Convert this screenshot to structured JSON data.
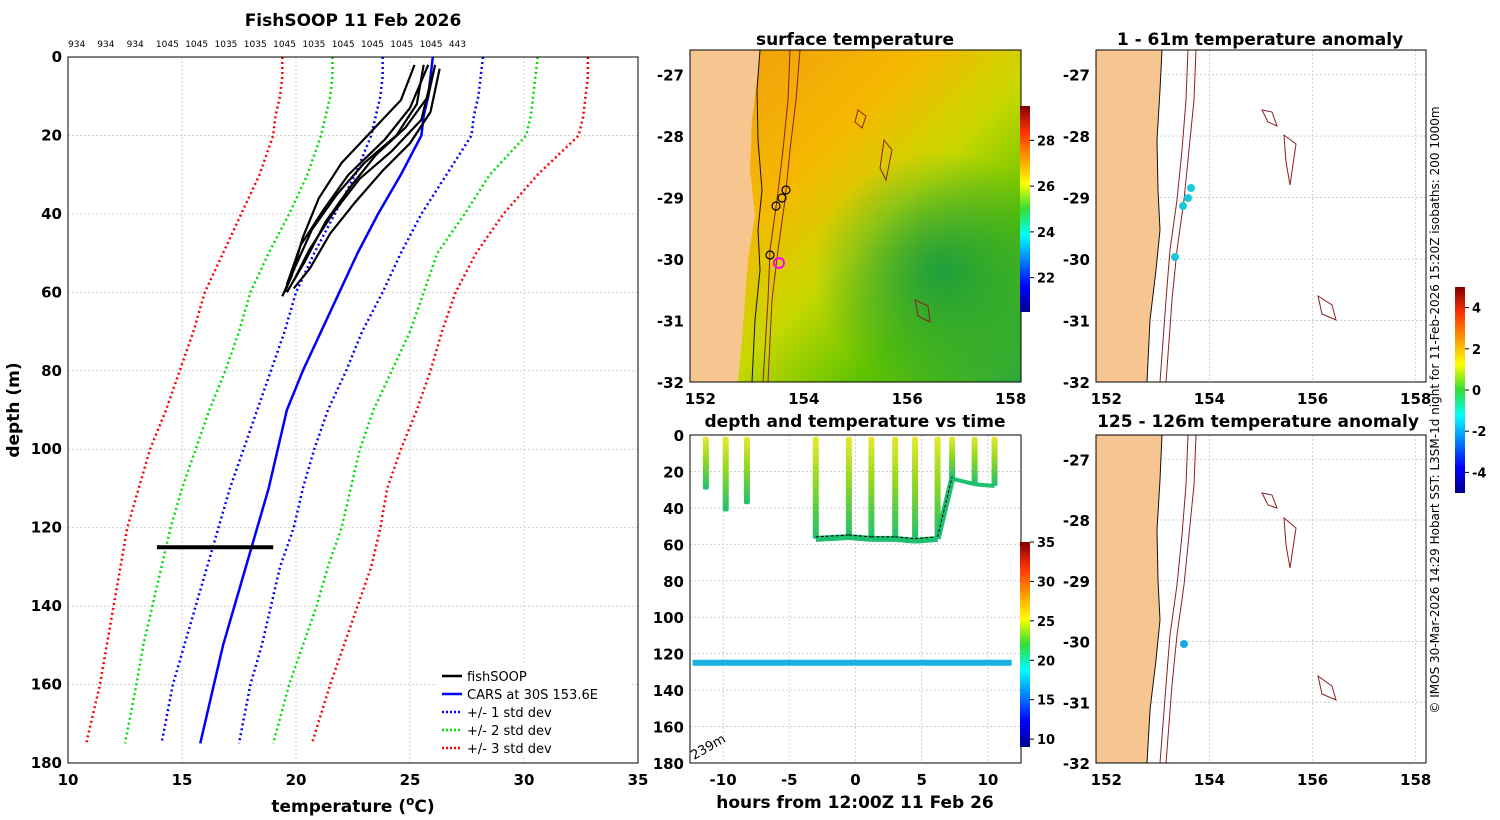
{
  "chart_data": [
    {
      "id": "profile",
      "type": "line",
      "title": "FishSOOP 11 Feb 2026",
      "top_counts": [
        "934",
        "934",
        "934",
        "1045",
        "1045",
        "1035",
        "1035",
        "1045",
        "1035",
        "1045",
        "1045",
        "1045",
        "1045",
        "443"
      ],
      "xlabel": "temperature (",
      "xlabel_sup": "o",
      "xlabel_end": "C)",
      "ylabel": "depth (m)",
      "xlim": [
        10,
        35
      ],
      "ylim": [
        0,
        180
      ],
      "xticks": [
        10,
        15,
        20,
        25,
        30,
        35
      ],
      "yticks": [
        0,
        20,
        40,
        60,
        80,
        100,
        120,
        140,
        160,
        180
      ],
      "depths": [
        0,
        5,
        10,
        15,
        20,
        30,
        40,
        50,
        60,
        70,
        80,
        90,
        100,
        110,
        120,
        130,
        140,
        150,
        160,
        175
      ],
      "series": [
        {
          "name": "CARS at 30S 153.6E",
          "color": "#0000ff",
          "dash": false,
          "values": [
            26.0,
            25.9,
            25.8,
            25.6,
            25.5,
            24.6,
            23.6,
            22.7,
            21.9,
            21.1,
            20.3,
            19.6,
            19.2,
            18.8,
            18.3,
            17.8,
            17.3,
            16.8,
            16.4,
            15.8
          ]
        },
        {
          "name": "+/- 1 std dev",
          "color": "#0000ff",
          "dash": true,
          "values": [
            23.8,
            23.8,
            23.7,
            23.5,
            23.3,
            22.6,
            21.7,
            20.8,
            20.0,
            19.5,
            18.9,
            18.3,
            17.7,
            17.1,
            16.6,
            16.1,
            15.6,
            15.1,
            14.6,
            14.1
          ]
        },
        {
          "name": "+/- 1 std dev",
          "color": "#0000ff",
          "dash": true,
          "values": [
            28.2,
            28.1,
            28.0,
            27.8,
            27.7,
            26.6,
            25.5,
            24.6,
            23.8,
            22.9,
            22.2,
            21.4,
            20.8,
            20.3,
            19.9,
            19.3,
            18.9,
            18.5,
            18.0,
            17.5
          ]
        },
        {
          "name": "+/- 2 std dev",
          "color": "#00dd00",
          "dash": true,
          "values": [
            21.6,
            21.6,
            21.5,
            21.3,
            21.1,
            20.5,
            19.7,
            18.8,
            18.0,
            17.5,
            16.9,
            16.2,
            15.6,
            15.0,
            14.5,
            14.1,
            13.7,
            13.3,
            13.0,
            12.5
          ]
        },
        {
          "name": "+/- 2 std dev",
          "color": "#00dd00",
          "dash": true,
          "values": [
            30.6,
            30.5,
            30.4,
            30.3,
            30.1,
            28.5,
            27.4,
            26.2,
            25.6,
            25.0,
            24.2,
            23.4,
            22.8,
            22.4,
            22.0,
            21.4,
            20.9,
            20.3,
            19.7,
            19.0
          ]
        },
        {
          "name": "+/- 3 std dev",
          "color": "#ff0000",
          "dash": true,
          "values": [
            19.4,
            19.4,
            19.3,
            19.1,
            19.0,
            18.4,
            17.6,
            16.8,
            16.0,
            15.5,
            14.9,
            14.3,
            13.6,
            13.1,
            12.6,
            12.3,
            12.0,
            11.7,
            11.4,
            10.8
          ]
        },
        {
          "name": "+/- 3 std dev",
          "color": "#ff0000",
          "dash": true,
          "values": [
            32.8,
            32.8,
            32.7,
            32.6,
            32.4,
            30.6,
            29.1,
            27.9,
            27.0,
            26.4,
            25.9,
            25.3,
            24.6,
            24.0,
            23.7,
            23.3,
            22.7,
            22.1,
            21.5,
            20.7
          ]
        }
      ],
      "fishsoop_profiles": [
        [
          [
            26.1,
            2
          ],
          [
            25.8,
            10
          ],
          [
            24.8,
            18
          ],
          [
            23.5,
            25
          ],
          [
            22.4,
            33
          ],
          [
            21.3,
            42
          ],
          [
            20.4,
            52
          ],
          [
            19.6,
            60
          ]
        ],
        [
          [
            25.6,
            2
          ],
          [
            25.3,
            12
          ],
          [
            24.4,
            20
          ],
          [
            23.0,
            27
          ],
          [
            21.8,
            35
          ],
          [
            20.7,
            44
          ],
          [
            20.0,
            53
          ],
          [
            19.4,
            61
          ]
        ],
        [
          [
            26.3,
            3
          ],
          [
            25.9,
            14
          ],
          [
            25.0,
            22
          ],
          [
            23.8,
            29
          ],
          [
            22.6,
            37
          ],
          [
            21.5,
            45
          ],
          [
            20.6,
            54
          ],
          [
            19.9,
            59
          ]
        ],
        [
          [
            25.2,
            2
          ],
          [
            24.6,
            11
          ],
          [
            23.3,
            19
          ],
          [
            22.0,
            27
          ],
          [
            21.0,
            36
          ],
          [
            20.3,
            46
          ],
          [
            19.8,
            56
          ],
          [
            19.5,
            60
          ]
        ],
        [
          [
            26.0,
            4
          ],
          [
            25.5,
            16
          ],
          [
            24.2,
            24
          ],
          [
            22.8,
            31
          ],
          [
            21.6,
            40
          ],
          [
            20.6,
            49
          ],
          [
            19.9,
            57
          ]
        ],
        [
          [
            25.8,
            2
          ],
          [
            25.0,
            13
          ],
          [
            23.9,
            21
          ],
          [
            22.3,
            30
          ],
          [
            21.2,
            39
          ],
          [
            20.2,
            48
          ],
          [
            19.6,
            58
          ]
        ]
      ],
      "fishsoop_bottom": {
        "x1": 13.9,
        "x2": 19.0,
        "depth": 125
      },
      "legend": [
        {
          "label": "fishSOOP",
          "color": "#000000",
          "dash": false
        },
        {
          "label": "CARS at 30S 153.6E",
          "color": "#0000ff",
          "dash": false
        },
        {
          "label": "+/- 1 std dev",
          "color": "#0000ff",
          "dash": true
        },
        {
          "label": "+/- 2 std dev",
          "color": "#00dd00",
          "dash": true
        },
        {
          "label": "+/- 3 std dev",
          "color": "#ff0000",
          "dash": true
        }
      ]
    },
    {
      "id": "sst_map",
      "type": "heatmap",
      "title": "surface temperature",
      "xlim": [
        151.8,
        158.2
      ],
      "ylim": [
        -32,
        -26.6
      ],
      "xticks": [
        152,
        154,
        156,
        158
      ],
      "yticks": [
        -27,
        -28,
        -29,
        -30,
        -31,
        -32
      ],
      "colorbar_ticks": [
        22,
        24,
        26,
        28
      ],
      "colorbar_range": [
        20.5,
        29.5
      ]
    },
    {
      "id": "depth_time",
      "type": "scatter",
      "title": "depth and temperature vs time",
      "xlabel": "hours from 12:00Z 11 Feb 26",
      "xlim": [
        -12.5,
        12.5
      ],
      "ylim": [
        0,
        180
      ],
      "xticks": [
        -10,
        -5,
        0,
        5,
        10
      ],
      "yticks": [
        0,
        20,
        40,
        60,
        80,
        100,
        120,
        140,
        160,
        180
      ],
      "colorbar_ticks": [
        10,
        15,
        20,
        25,
        30,
        35
      ],
      "colorbar_range": [
        9,
        35
      ],
      "bottom_label": "239m",
      "casts": [
        {
          "t": -11.3,
          "d": 30
        },
        {
          "t": -9.8,
          "d": 42
        },
        {
          "t": -8.2,
          "d": 38
        },
        {
          "t": -3.0,
          "d": 57
        },
        {
          "t": -0.5,
          "d": 56
        },
        {
          "t": 1.2,
          "d": 57
        },
        {
          "t": 3.0,
          "d": 57
        },
        {
          "t": 4.5,
          "d": 58
        },
        {
          "t": 6.2,
          "d": 57
        },
        {
          "t": 7.3,
          "d": 24
        },
        {
          "t": 9.0,
          "d": 27
        },
        {
          "t": 10.5,
          "d": 28
        }
      ],
      "bottom_line": {
        "t1": -12.3,
        "t2": 11.8,
        "depth": 125
      }
    },
    {
      "id": "anom_upper",
      "type": "heatmap",
      "title": "1 - 61m temperature anomaly",
      "xlim": [
        151.8,
        158.2
      ],
      "ylim": [
        -32,
        -26.6
      ],
      "xticks": [
        152,
        154,
        156,
        158
      ],
      "yticks": [
        -27,
        -28,
        -29,
        -30,
        -31,
        -32
      ]
    },
    {
      "id": "anom_lower",
      "type": "heatmap",
      "title": "125 - 126m temperature anomaly",
      "xlim": [
        151.8,
        158.2
      ],
      "ylim": [
        -32,
        -26.6
      ],
      "xticks": [
        152,
        154,
        156,
        158
      ],
      "yticks": [
        -27,
        -28,
        -29,
        -30,
        -31,
        -32
      ],
      "colorbar_ticks": [
        -4,
        -2,
        0,
        2,
        4
      ],
      "colorbar_range": [
        -5,
        5
      ]
    }
  ],
  "side_caption": "© IMOS 30-Mar-2026 14:29 Hobart SST: L3SM-1d night for 11-Feb-2026 15:20Z isobaths: 200  1000m"
}
